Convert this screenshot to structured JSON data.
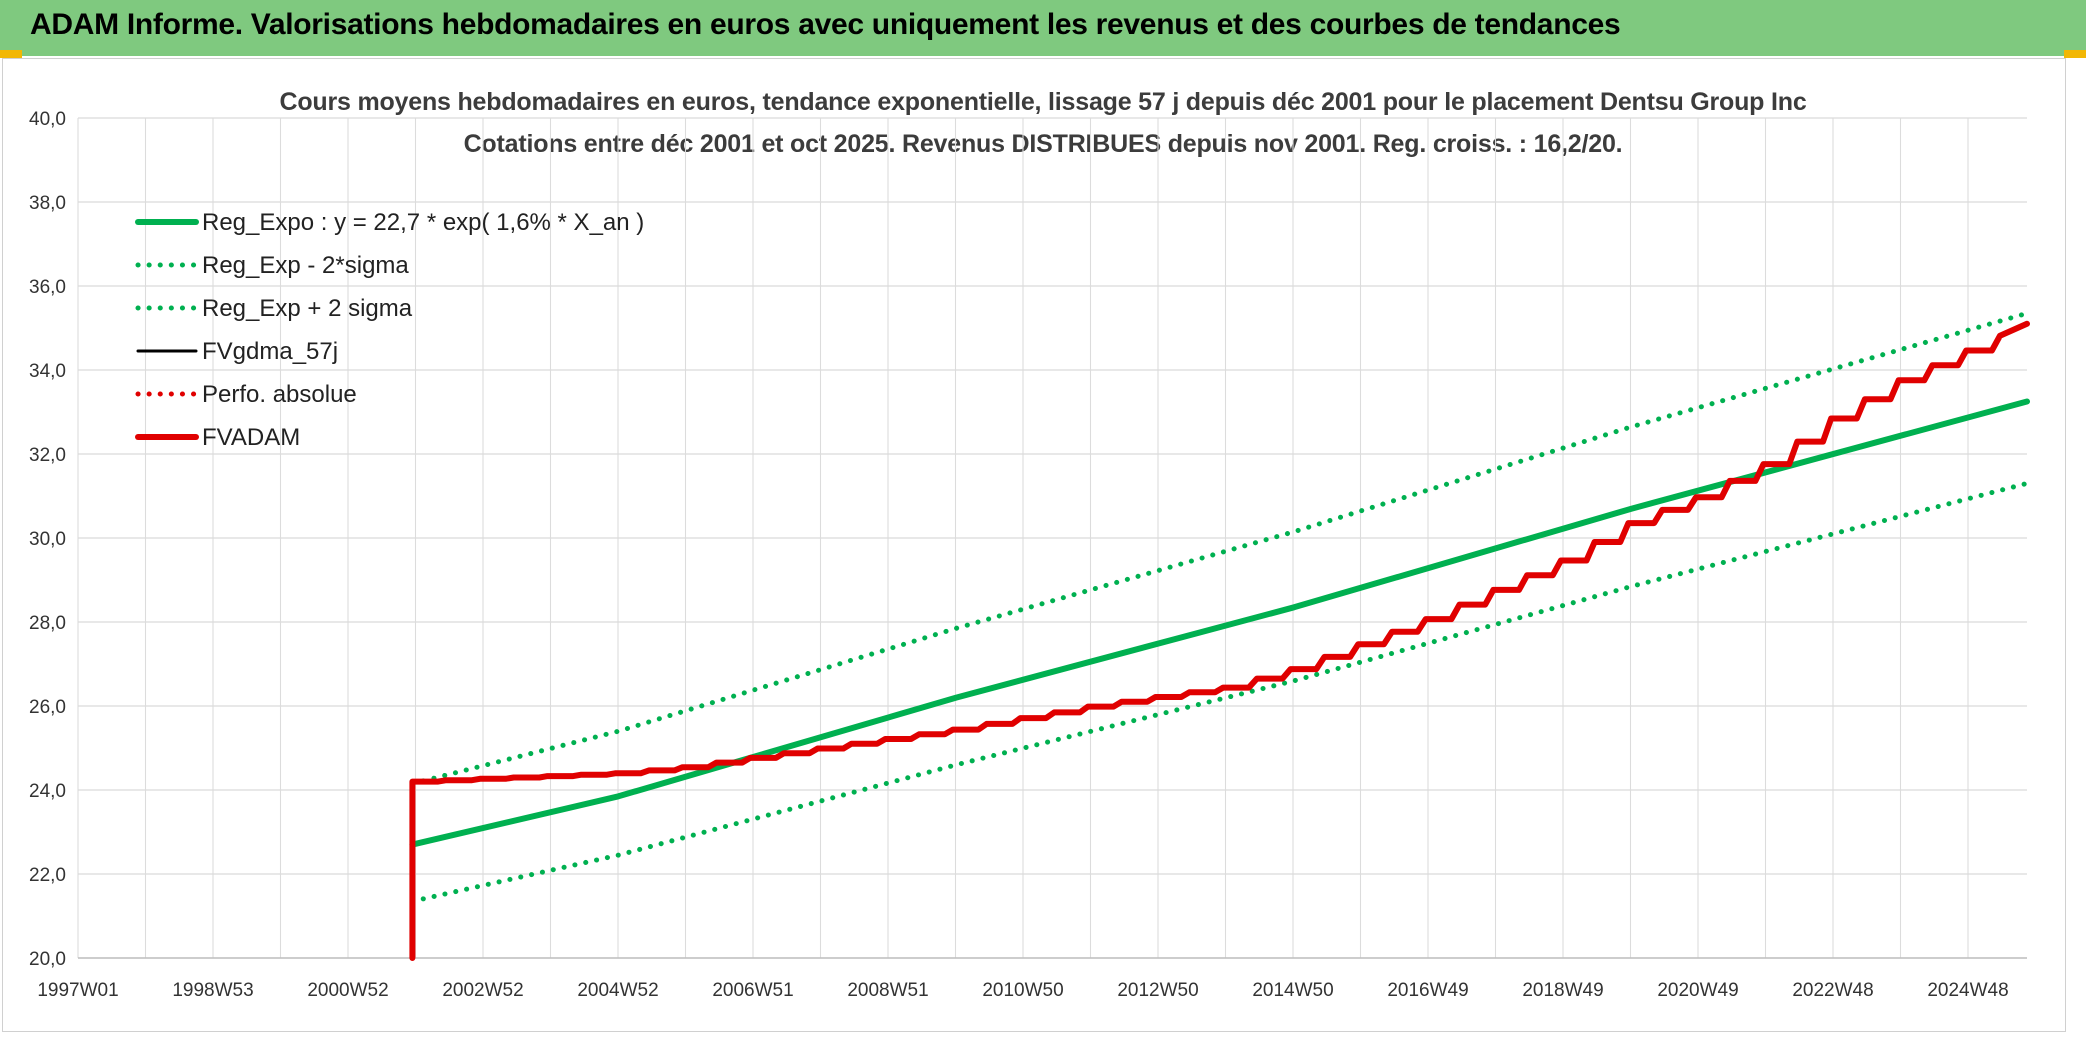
{
  "header": {
    "title": "ADAM Informe. Valorisations hebdomadaires en euros avec uniquement les revenus et des courbes de tendances"
  },
  "chart_data": {
    "type": "line",
    "title": "Cours moyens hebdomadaires en euros, tendance exponentielle, lissage 57 j depuis déc 2001 pour le placement Dentsu Group Inc",
    "subtitle": "Cotations entre déc 2001 et oct 2025. Revenus DISTRIBUES depuis nov 2001. Reg. croiss. : 16,2/20.",
    "xlabel": "",
    "ylabel": "",
    "x_ticks": [
      "1997W01",
      "1998W53",
      "2000W52",
      "2002W52",
      "2004W52",
      "2006W51",
      "2008W51",
      "2010W50",
      "2012W50",
      "2014W50",
      "2016W49",
      "2018W49",
      "2020W49",
      "2022W48",
      "2024W48"
    ],
    "x_range": [
      "1997W01",
      "2025W44"
    ],
    "y_ticks": [
      "20,0",
      "22,0",
      "24,0",
      "26,0",
      "28,0",
      "30,0",
      "32,0",
      "34,0",
      "36,0",
      "38,0",
      "40,0"
    ],
    "ylim": [
      20,
      40
    ],
    "grid": true,
    "legend_position": "top-left",
    "series": [
      {
        "name": "Reg_Expo : y = 22,7 * exp( 1,6% *  X_an )",
        "color": "#00b050",
        "style": "solid-thick",
        "points": [
          [
            2001.95,
            22.7
          ],
          [
            2005,
            23.85
          ],
          [
            2010,
            26.2
          ],
          [
            2015,
            28.35
          ],
          [
            2020,
            30.7
          ],
          [
            2025.85,
            33.25
          ]
        ]
      },
      {
        "name": "Reg_Exp - 2*sigma",
        "color": "#00b050",
        "style": "dotted",
        "points": [
          [
            2001.95,
            21.35
          ],
          [
            2005,
            22.45
          ],
          [
            2010,
            24.6
          ],
          [
            2015,
            26.6
          ],
          [
            2020,
            28.85
          ],
          [
            2025.85,
            31.3
          ]
        ]
      },
      {
        "name": "Reg_Exp + 2 sigma",
        "color": "#00b050",
        "style": "dotted",
        "points": [
          [
            2001.95,
            24.15
          ],
          [
            2005,
            25.4
          ],
          [
            2010,
            27.85
          ],
          [
            2015,
            30.15
          ],
          [
            2020,
            32.65
          ],
          [
            2025.85,
            35.35
          ]
        ]
      },
      {
        "name": "FVgdma_57j",
        "color": "#000000",
        "style": "solid",
        "points": [
          [
            2001.95,
            24.2
          ],
          [
            2005,
            24.4
          ],
          [
            2006,
            24.55
          ],
          [
            2008,
            25.0
          ],
          [
            2010,
            25.45
          ],
          [
            2012,
            26.0
          ],
          [
            2014,
            26.45
          ],
          [
            2015,
            26.9
          ],
          [
            2016,
            27.5
          ],
          [
            2017,
            28.1
          ],
          [
            2018,
            28.8
          ],
          [
            2019,
            29.5
          ],
          [
            2020,
            30.4
          ],
          [
            2021,
            31.0
          ],
          [
            2022,
            31.8
          ],
          [
            2023,
            32.9
          ],
          [
            2024,
            33.8
          ],
          [
            2025,
            34.5
          ],
          [
            2025.85,
            35.1
          ]
        ]
      },
      {
        "name": "Perfo. absolue",
        "color": "#e00000",
        "style": "dotted",
        "points": [
          [
            2001.95,
            24.2
          ],
          [
            2005,
            24.4
          ],
          [
            2006,
            24.55
          ],
          [
            2008,
            25.0
          ],
          [
            2010,
            25.45
          ],
          [
            2012,
            26.0
          ],
          [
            2014,
            26.45
          ],
          [
            2015,
            26.9
          ],
          [
            2016,
            27.5
          ],
          [
            2017,
            28.1
          ],
          [
            2018,
            28.8
          ],
          [
            2019,
            29.5
          ],
          [
            2020,
            30.4
          ],
          [
            2021,
            31.0
          ],
          [
            2022,
            31.8
          ],
          [
            2023,
            32.9
          ],
          [
            2024,
            33.8
          ],
          [
            2025,
            34.5
          ],
          [
            2025.85,
            35.1
          ]
        ]
      },
      {
        "name": "FVADAM",
        "color": "#e00000",
        "style": "solid-thick",
        "points": [
          [
            2001.95,
            20.0
          ],
          [
            2001.95,
            24.2
          ],
          [
            2005,
            24.4
          ],
          [
            2006,
            24.55
          ],
          [
            2008,
            25.0
          ],
          [
            2010,
            25.45
          ],
          [
            2012,
            26.0
          ],
          [
            2014,
            26.45
          ],
          [
            2015,
            26.9
          ],
          [
            2016,
            27.5
          ],
          [
            2017,
            28.1
          ],
          [
            2018,
            28.8
          ],
          [
            2019,
            29.5
          ],
          [
            2020,
            30.4
          ],
          [
            2021,
            31.0
          ],
          [
            2022,
            31.8
          ],
          [
            2023,
            32.9
          ],
          [
            2024,
            33.8
          ],
          [
            2025,
            34.5
          ],
          [
            2025.85,
            35.1
          ]
        ]
      }
    ]
  }
}
